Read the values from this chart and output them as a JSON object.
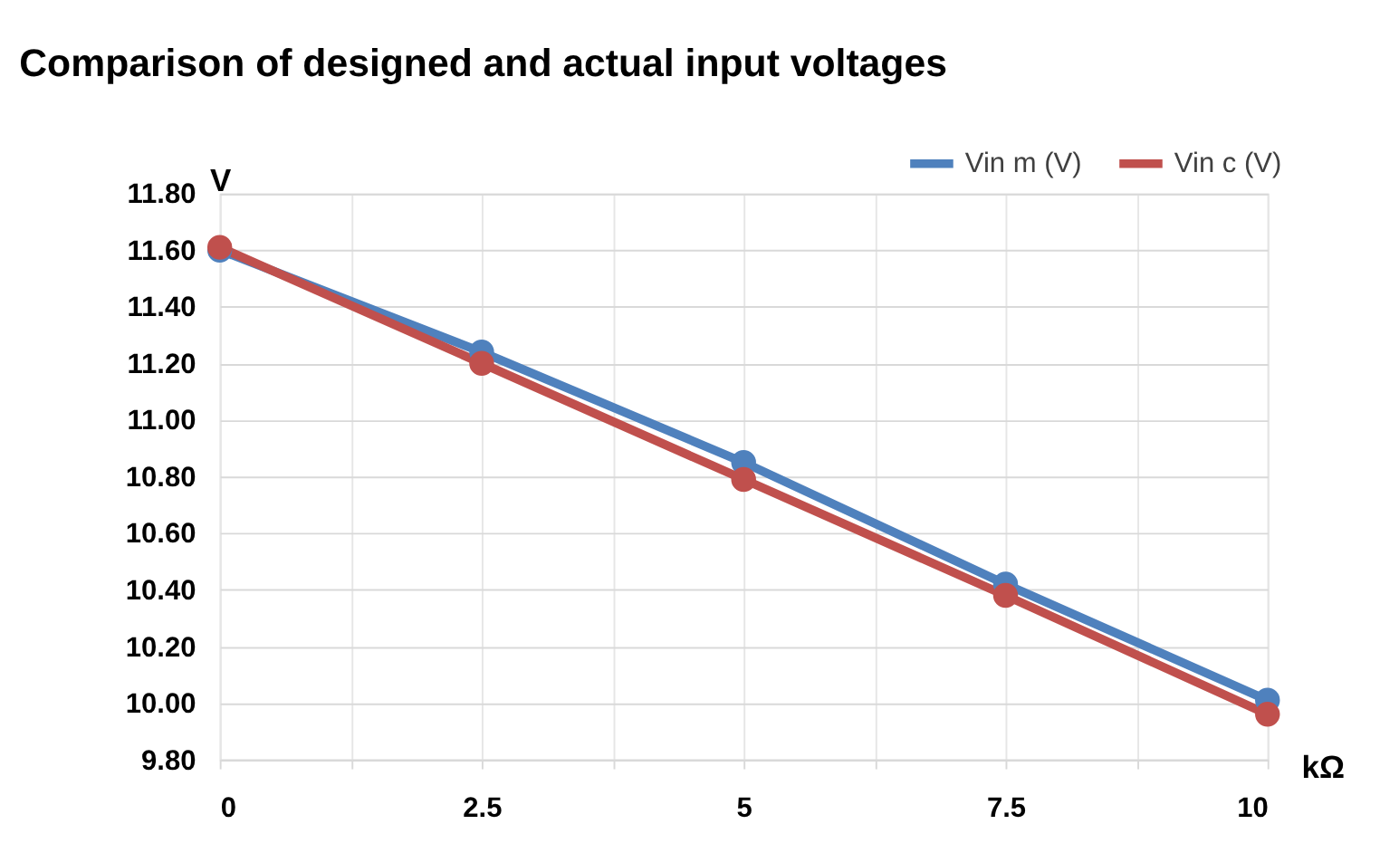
{
  "chart_data": {
    "type": "line",
    "title": "Comparison of designed and actual input voltages",
    "xlabel": "kΩ",
    "ylabel": "V",
    "x": [
      0,
      2.5,
      5,
      7.5,
      10
    ],
    "series": [
      {
        "name": "Vin m (V)",
        "color": "#4f81bd",
        "values": [
          11.6,
          11.24,
          10.85,
          10.42,
          10.01
        ]
      },
      {
        "name": "Vin c (V)",
        "color": "#c0504d",
        "values": [
          11.61,
          11.2,
          10.79,
          10.38,
          9.96
        ]
      }
    ],
    "xlim": [
      0,
      10
    ],
    "xticks": [
      0,
      {
        "value": 1.25,
        "label": null
      },
      2.5,
      {
        "value": 3.75,
        "label": null
      },
      5,
      {
        "value": 6.25,
        "label": null
      },
      7.5,
      {
        "value": 8.75,
        "label": null
      },
      10
    ],
    "ylim": [
      9.8,
      11.8
    ],
    "yticks": [
      {
        "value": 9.8,
        "label": "9.80"
      },
      {
        "value": 10.0,
        "label": "10.00"
      },
      {
        "value": 10.2,
        "label": "10.20"
      },
      {
        "value": 10.4,
        "label": "10.40"
      },
      {
        "value": 10.6,
        "label": "10.60"
      },
      {
        "value": 10.8,
        "label": "10.80"
      },
      {
        "value": 11.0,
        "label": "11.00"
      },
      {
        "value": 11.2,
        "label": "11.20"
      },
      {
        "value": 11.4,
        "label": "11.40"
      },
      {
        "value": 11.6,
        "label": "11.60"
      },
      {
        "value": 11.8,
        "label": "11.80"
      }
    ],
    "grid": true,
    "legend": "top right",
    "marker": "circle",
    "line_style": "solid"
  }
}
